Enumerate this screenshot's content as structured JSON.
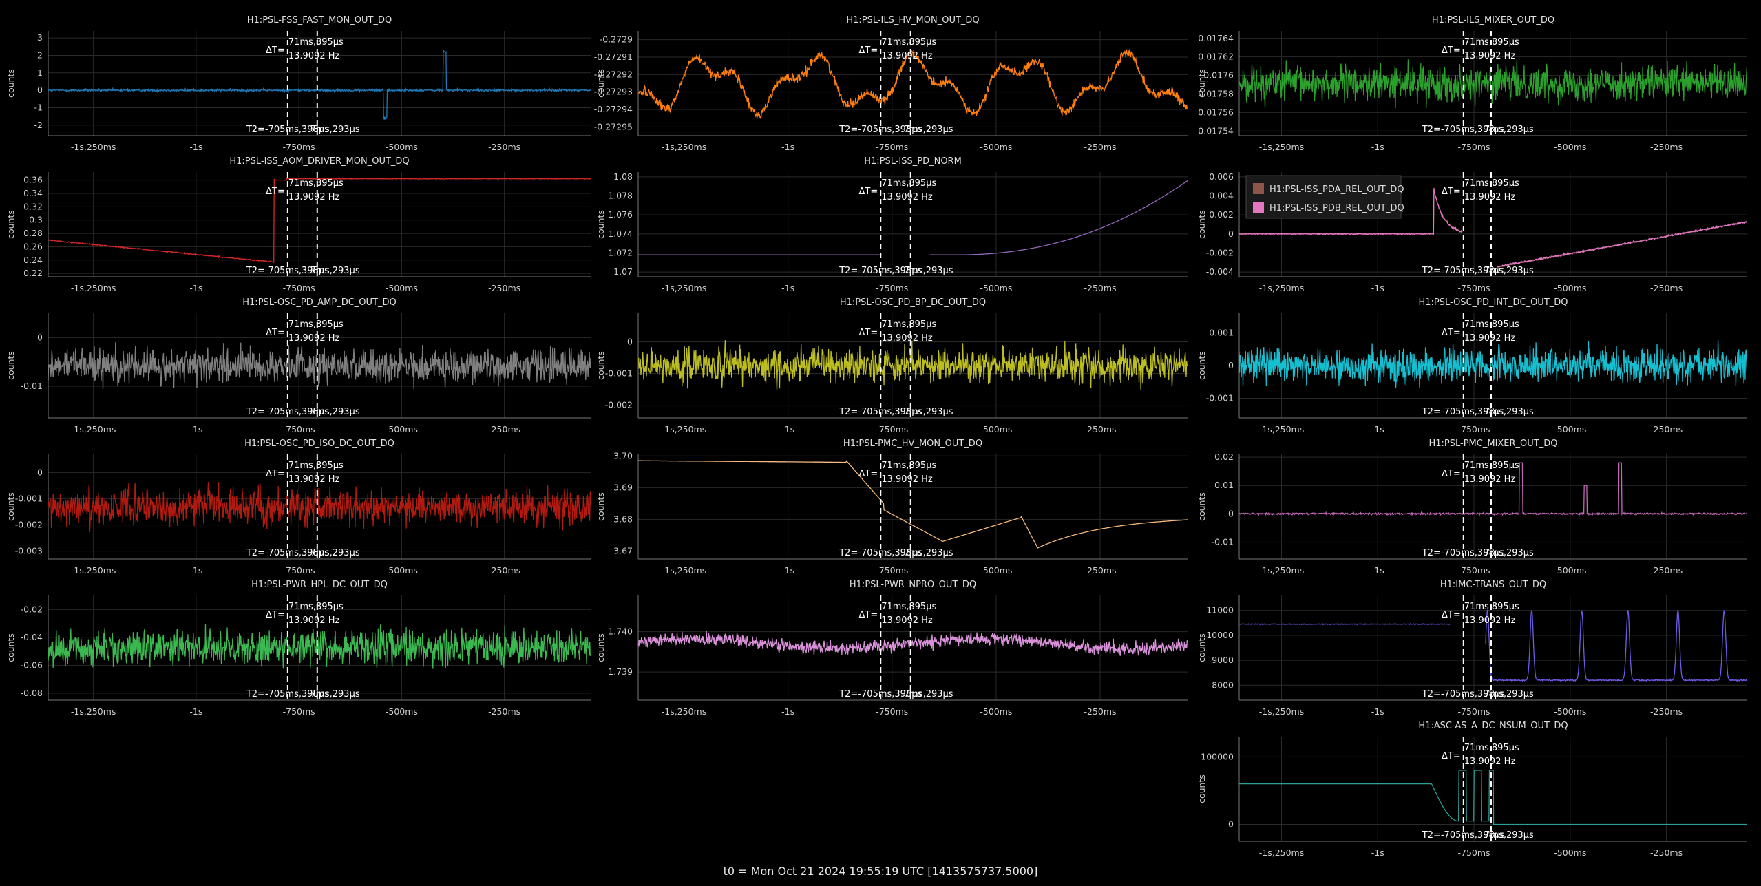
{
  "footer": "t0 = Mon Oct 21 2024 19:55:19 UTC [1413575737.5000]",
  "cursor": {
    "dt_label": "ΔT=",
    "dt_value": "71ms,895μs",
    "freq_value": "13.9092 Hz",
    "t2_label": "T2=-705ms,398μs",
    "t1_partial": "7ms,293μs"
  },
  "x_ticks": [
    "-1s,250ms",
    "-1s",
    "-750ms",
    "-500ms",
    "-250ms"
  ],
  "y_axis_label": "counts",
  "chart_data": [
    {
      "type": "line",
      "title": "H1:PSL-FSS_FAST_MON_OUT_DQ",
      "color": "#1f77b4",
      "yticks": [
        "3",
        "2",
        "1",
        "0",
        "-1",
        "-2"
      ],
      "ylim": [
        -2.6,
        3.4
      ],
      "shape": "fss"
    },
    {
      "type": "line",
      "title": "H1:PSL-ILS_HV_MON_OUT_DQ",
      "color": "#ff7f0e",
      "yticks": [
        "-0.2729",
        "-0.27291",
        "-0.27292",
        "-0.27293",
        "-0.27294",
        "-0.27295"
      ],
      "ylim": [
        -0.272955,
        -0.272895
      ],
      "shape": "ils"
    },
    {
      "type": "line",
      "title": "H1:PSL-ILS_MIXER_OUT_DQ",
      "color": "#2ca02c",
      "yticks": [
        "0.01764",
        "0.01762",
        "0.0176",
        "0.01758",
        "0.01756",
        "0.01754"
      ],
      "ylim": [
        0.017535,
        0.017648
      ],
      "shape": "noise"
    },
    {
      "type": "line",
      "title": "H1:PSL-ISS_AOM_DRIVER_MON_OUT_DQ",
      "color": "#d62728",
      "yticks": [
        "0.36",
        "0.34",
        "0.32",
        "0.3",
        "0.28",
        "0.26",
        "0.24",
        "0.22"
      ],
      "ylim": [
        0.215,
        0.372
      ],
      "shape": "aom"
    },
    {
      "type": "line",
      "title": "H1:PSL-ISS_PD_NORM",
      "color": "#9467bd",
      "yticks": [
        "1.08",
        "1.078",
        "1.076",
        "1.074",
        "1.072",
        "1.07"
      ],
      "ylim": [
        1.0695,
        1.0805
      ],
      "shape": "pdnorm"
    },
    {
      "type": "line",
      "title": "",
      "color": "#8c564b",
      "yticks": [
        "0.006",
        "0.004",
        "0.002",
        "0",
        "-0.002",
        "-0.004"
      ],
      "ylim": [
        -0.0045,
        0.0065
      ],
      "shape": "pda",
      "legend": [
        {
          "name": "H1:PSL-ISS_PDA_REL_OUT_DQ",
          "color": "#8c564b"
        },
        {
          "name": "H1:PSL-ISS_PDB_REL_OUT_DQ",
          "color": "#e377c2"
        }
      ]
    },
    {
      "type": "line",
      "title": "H1:PSL-OSC_PD_AMP_DC_OUT_DQ",
      "color": "#7f7f7f",
      "yticks": [
        "0",
        "-0.01"
      ],
      "ylim": [
        -0.0165,
        0.005
      ],
      "shape": "noise"
    },
    {
      "type": "line",
      "title": "H1:PSL-OSC_PD_BP_DC_OUT_DQ",
      "color": "#bcbd22",
      "yticks": [
        "0",
        "-0.001",
        "-0.002"
      ],
      "ylim": [
        -0.0024,
        0.0009
      ],
      "shape": "noise"
    },
    {
      "type": "line",
      "title": "H1:PSL-OSC_PD_INT_DC_OUT_DQ",
      "color": "#17becf",
      "yticks": [
        "0.001",
        "0",
        "-0.001"
      ],
      "ylim": [
        -0.0016,
        0.0016
      ],
      "shape": "noise"
    },
    {
      "type": "line",
      "title": "H1:PSL-OSC_PD_ISO_DC_OUT_DQ",
      "color": "#b01a10",
      "yticks": [
        "0",
        "-0.001",
        "-0.002",
        "-0.003"
      ],
      "ylim": [
        -0.0033,
        0.0007
      ],
      "shape": "noise"
    },
    {
      "type": "line",
      "title": "H1:PSL-PMC_HV_MON_OUT_DQ",
      "color": "#f5b97f",
      "yticks": [
        "3.70",
        "3.69",
        "3.68",
        "3.67"
      ],
      "ylim": [
        3.6675,
        3.7005
      ],
      "shape": "pmchv"
    },
    {
      "type": "line",
      "title": "H1:PSL-PMC_MIXER_OUT_DQ",
      "color": "#c468b8",
      "yticks": [
        "0.02",
        "0.01",
        "0",
        "-0.01"
      ],
      "ylim": [
        -0.016,
        0.021
      ],
      "shape": "pmcmix"
    },
    {
      "type": "line",
      "title": "H1:PSL-PWR_HPL_DC_OUT_DQ",
      "color": "#3cb851",
      "yticks": [
        "-0.02",
        "-0.04",
        "-0.06",
        "-0.08"
      ],
      "ylim": [
        -0.085,
        -0.01
      ],
      "shape": "noise"
    },
    {
      "type": "line",
      "title": "H1:PSL-PWR_NPRO_OUT_DQ",
      "color": "#d891d8",
      "yticks": [
        "1.740",
        "1.739"
      ],
      "ylim": [
        1.7383,
        1.7409
      ],
      "shape": "npro"
    },
    {
      "type": "line",
      "title": "H1:IMC-TRANS_OUT_DQ",
      "color": "#6c5ce7",
      "yticks": [
        "11000",
        "10000",
        "9000",
        "8000"
      ],
      "ylim": [
        7400,
        11600
      ],
      "shape": "imc"
    },
    {
      "type": "line",
      "title": "H1:ASC-AS_A_DC_NSUM_OUT_DQ",
      "color": "#2aa198",
      "yticks": [
        "100000",
        "0"
      ],
      "ylim": [
        -25000,
        130000
      ],
      "shape": "asc"
    }
  ]
}
